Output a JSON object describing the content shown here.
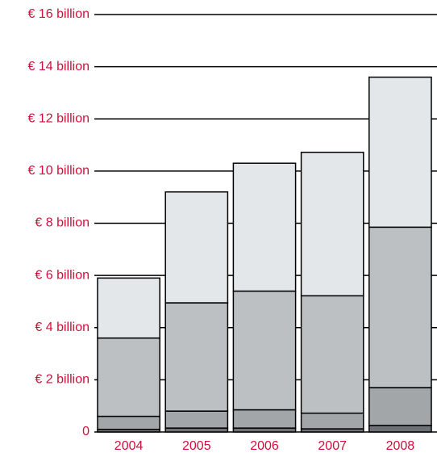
{
  "chart_data": {
    "type": "stacked_bar",
    "categories": [
      "2004",
      "2005",
      "2006",
      "2007",
      "2008"
    ],
    "series": [
      {
        "color": "#6e7175",
        "values": [
          0.1,
          0.15,
          0.15,
          0.12,
          0.25
        ]
      },
      {
        "color": "#a2a6a9",
        "values": [
          0.5,
          0.65,
          0.7,
          0.6,
          1.45
        ]
      },
      {
        "color": "#bcc0c3",
        "values": [
          3.0,
          4.15,
          4.55,
          4.5,
          6.15
        ]
      },
      {
        "color": "#e3e7ea",
        "values": [
          2.3,
          4.25,
          4.9,
          5.5,
          5.75
        ]
      }
    ],
    "ylim": [
      0,
      16
    ],
    "yticks": [
      0,
      {
        "value": 2,
        "label": "€ 2 billion"
      },
      {
        "value": 4,
        "label": "€ 4 billion"
      },
      {
        "value": 6,
        "label": "€ 6 billion"
      },
      {
        "value": 8,
        "label": "€ 8 billion"
      },
      {
        "value": 10,
        "label": "€ 10 billion"
      },
      {
        "value": 12,
        "label": "€ 12 billion"
      },
      {
        "value": 14,
        "label": "€ 14 billion"
      },
      {
        "value": 16,
        "label": "€ 16 billion"
      }
    ],
    "grid": true
  }
}
